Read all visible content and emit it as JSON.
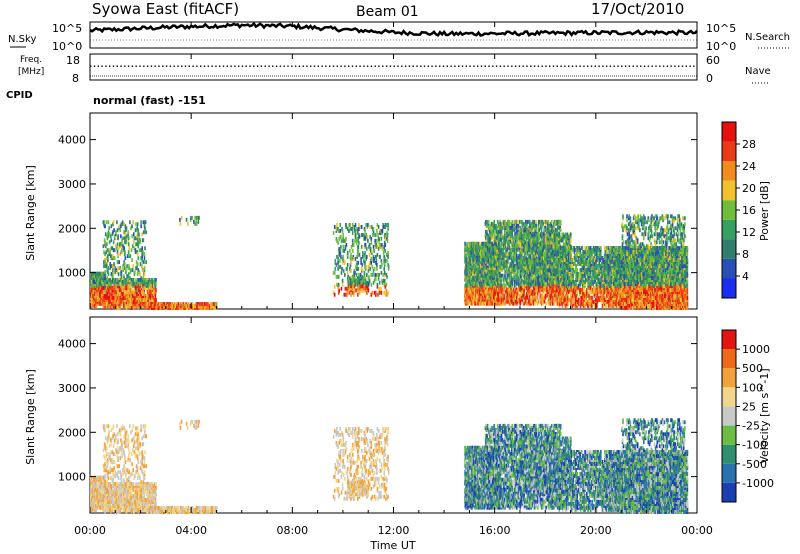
{
  "header": {
    "title": "Syowa East (fitACF)",
    "beam": "Beam 01",
    "date": "17/Oct/2010"
  },
  "chart_data": [
    {
      "type": "line",
      "panel": "noise",
      "left_label": "N.Sky",
      "right_label": "N.Search",
      "left_ticks": [
        "10^5",
        "10^0"
      ],
      "right_ticks": [
        "10^5",
        "10^0"
      ],
      "description_series": [
        {
          "hour": 0,
          "level": 0.7
        },
        {
          "hour": 3,
          "level": 0.85
        },
        {
          "hour": 6,
          "level": 0.95
        },
        {
          "hour": 8,
          "level": 0.9
        },
        {
          "hour": 10,
          "level": 0.75
        },
        {
          "hour": 12,
          "level": 0.62
        },
        {
          "hour": 14,
          "level": 0.55
        },
        {
          "hour": 18,
          "level": 0.58
        },
        {
          "hour": 22,
          "level": 0.62
        },
        {
          "hour": 24,
          "level": 0.6
        }
      ]
    },
    {
      "type": "scatter",
      "panel": "frequency",
      "left_label": "Freq. [MHz]",
      "right_label": "Nave",
      "left_ticks": [
        "18",
        "8"
      ],
      "right_ticks": [
        "60",
        "0"
      ],
      "cpid_label": "CPID",
      "cpid_text": "normal (fast) -151"
    },
    {
      "type": "heatmap",
      "panel": "power",
      "ylabel": "Slant Range [km]",
      "yticks": [
        1000,
        2000,
        3000,
        4000
      ],
      "ylim": [
        180,
        4600
      ],
      "colorbar_label": "Power [dB]",
      "colorbar_ticks": [
        "28",
        "24",
        "20",
        "16",
        "12",
        "8",
        "4"
      ],
      "colors": [
        "#1a2ef0",
        "#2a4fb4",
        "#2f7d6a",
        "#36a060",
        "#6fbe3b",
        "#f2c12e",
        "#f08c1e",
        "#ea3a1a",
        "#e4110c"
      ]
    },
    {
      "type": "heatmap",
      "panel": "velocity",
      "ylabel": "Slant Range [km]",
      "yticks": [
        1000,
        2000,
        3000,
        4000
      ],
      "ylim": [
        180,
        4600
      ],
      "colorbar_label": "Velocity [m s^-1]",
      "colorbar_ticks": [
        "1000",
        "500",
        "100",
        "25",
        "-25",
        "-100",
        "-500",
        "-1000"
      ],
      "colors": [
        "#1b3fb0",
        "#2a72ad",
        "#2f8f6e",
        "#6bbd43",
        "#c8c8c8",
        "#f0d68a",
        "#f2a23a",
        "#ec6a18",
        "#e2160f"
      ]
    }
  ],
  "xaxis": {
    "label": "Time UT",
    "ticks": [
      "00:00",
      "04:00",
      "08:00",
      "12:00",
      "16:00",
      "20:00",
      "00:00"
    ]
  }
}
